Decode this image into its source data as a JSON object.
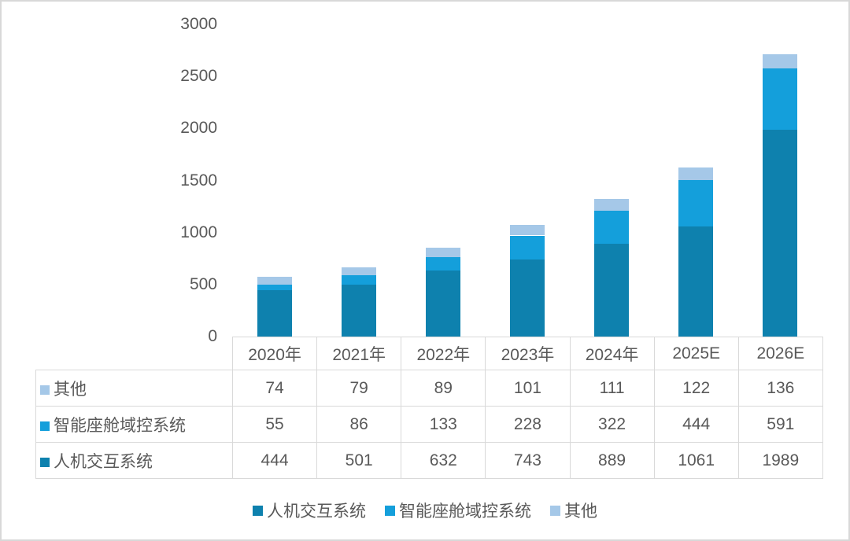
{
  "colors": {
    "series_dark": "#0E81AE",
    "series_medium": "#149FDB",
    "series_light": "#A5C8E8",
    "text": "#595959",
    "table_border": "#D9D9D9",
    "outer_border": "#D8D8D8"
  },
  "chart_data": {
    "type": "bar",
    "stacked": true,
    "title": "",
    "xlabel": "",
    "ylabel": "",
    "grid": false,
    "legend_position": "bottom",
    "categories": [
      "2020年",
      "2021年",
      "2022年",
      "2023年",
      "2024年",
      "2025E",
      "2026E"
    ],
    "series": [
      {
        "name": "人机交互系统",
        "color": "#0E81AE",
        "values": [
          444,
          501,
          632,
          743,
          889,
          1061,
          1989
        ]
      },
      {
        "name": "智能座舱域控系统",
        "color": "#149FDB",
        "values": [
          55,
          86,
          133,
          228,
          322,
          444,
          591
        ]
      },
      {
        "name": "其他",
        "color": "#A5C8E8",
        "values": [
          74,
          79,
          89,
          101,
          111,
          122,
          136
        ]
      }
    ],
    "totals": [
      573,
      666,
      854,
      1072,
      1322,
      1627,
      2716
    ],
    "y_axis": {
      "min": 0,
      "max": 3000,
      "step": 500,
      "ticks": [
        "0",
        "500",
        "1000",
        "1500",
        "2000",
        "2500",
        "3000"
      ]
    }
  },
  "table": {
    "header": [
      "2020年",
      "2021年",
      "2022年",
      "2023年",
      "2024年",
      "2025E",
      "2026E"
    ],
    "rows": [
      {
        "label": "其他",
        "color": "#A5C8E8",
        "values": [
          "74",
          "79",
          "89",
          "101",
          "111",
          "122",
          "136"
        ]
      },
      {
        "label": "智能座舱域控系统",
        "color": "#149FDB",
        "values": [
          "55",
          "86",
          "133",
          "228",
          "322",
          "444",
          "591"
        ]
      },
      {
        "label": "人机交互系统",
        "color": "#0E81AE",
        "values": [
          "444",
          "501",
          "632",
          "743",
          "889",
          "1061",
          "1989"
        ]
      }
    ]
  },
  "legend": {
    "items": [
      {
        "label": "人机交互系统",
        "color": "#0E81AE"
      },
      {
        "label": "智能座舱域控系统",
        "color": "#149FDB"
      },
      {
        "label": "其他",
        "color": "#A5C8E8"
      }
    ]
  }
}
